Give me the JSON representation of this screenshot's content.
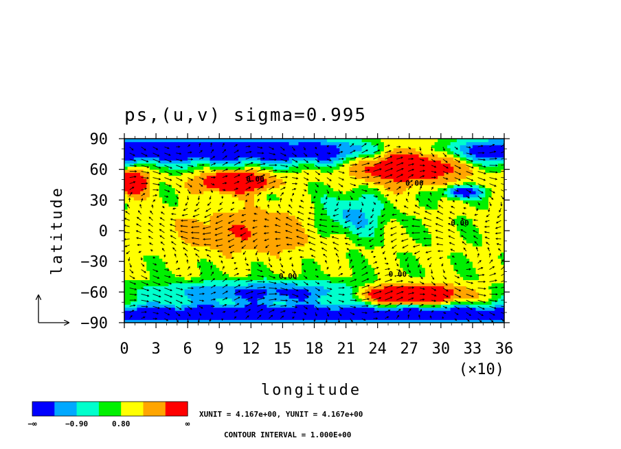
{
  "chart_data": {
    "type": "heatmap",
    "title": "ps,(u,v) sigma=0.995",
    "xlabel": "longitude",
    "ylabel": "latitude",
    "x_multiplier": "(×10)",
    "xlim": [
      0,
      36
    ],
    "ylim": [
      -90,
      90
    ],
    "x_ticks": [
      0,
      3,
      6,
      9,
      12,
      15,
      18,
      21,
      24,
      27,
      30,
      33,
      36
    ],
    "x_tick_labels": [
      "0",
      "3",
      "6",
      "9",
      "12",
      "15",
      "18",
      "21",
      "24",
      "27",
      "30",
      "33",
      "36"
    ],
    "y_ticks": [
      90,
      60,
      30,
      0,
      -30,
      -60,
      -90
    ],
    "y_tick_labels": [
      "90",
      "60",
      "30",
      "0",
      "−30",
      "−60",
      "−90"
    ],
    "legend": {
      "colors": [
        "#0000ff",
        "#00a8ff",
        "#00ffcc",
        "#00f000",
        "#ffff00",
        "#ffa500",
        "#ff0000"
      ],
      "labels": [
        "−∞",
        "−0.90",
        "0.80",
        "∞"
      ]
    },
    "contour_labels": [
      {
        "text": "0.00",
        "x": 12.4,
        "y": 48
      },
      {
        "text": "0.00",
        "x": 27.5,
        "y": 44
      },
      {
        "text": "0.00",
        "x": 31.8,
        "y": 5
      },
      {
        "text": "0.00",
        "x": 15.5,
        "y": -47
      },
      {
        "text": "0.00",
        "x": 25.9,
        "y": -45
      }
    ],
    "unit_note": "XUNIT = 4.167e+00, YUNIT = 4.167e+00",
    "contour_note": "CONTOUR INTERVAL = 1.000E+00",
    "colors": {
      "neg_low": "#0000ff",
      "neg_mid": "#00a8ff",
      "neg_small": "#00ffcc",
      "near_zero": "#00f000",
      "pos_small": "#ffff00",
      "pos_mid": "#ffa500",
      "pos_high": "#ff0000"
    }
  }
}
